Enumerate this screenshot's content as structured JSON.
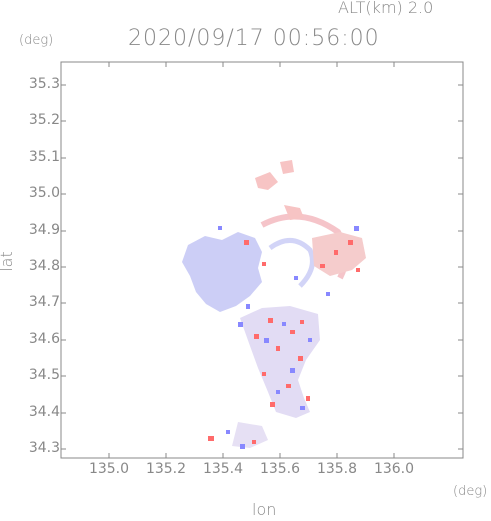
{
  "header": {
    "altitude_label": "ALT(km)  2.0",
    "timestamp": "2020/09/17 00:56:00"
  },
  "axes": {
    "y_unit": "(deg)",
    "x_unit": "(deg)",
    "y_label": "lat",
    "x_label": "lon",
    "y_ticks": [
      "35.3",
      "35.2",
      "35.1",
      "35.0",
      "34.9",
      "34.8",
      "34.7",
      "34.6",
      "34.5",
      "34.4",
      "34.3"
    ],
    "x_ticks": [
      "135.0",
      "135.2",
      "135.4",
      "135.6",
      "135.8",
      "136.0"
    ]
  },
  "colors": {
    "axis": "#888888",
    "grid": "#dddddd",
    "positive": "#ff6b6b",
    "negative": "#8888ff",
    "faint_negative": "#c7c9f5",
    "faint_positive": "#f7c4c4"
  }
}
